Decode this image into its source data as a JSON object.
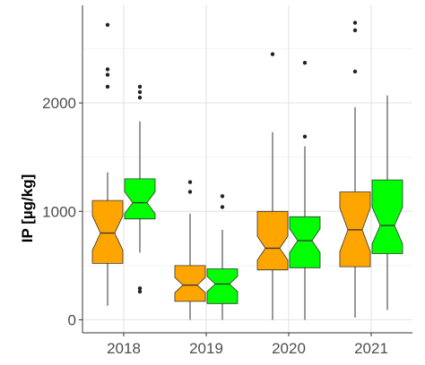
{
  "chart_data": {
    "type": "boxplot",
    "notched": true,
    "title": "",
    "xlabel": "",
    "ylabel": "IP [µg/kg]",
    "ylim": [
      -120,
      2900
    ],
    "grid": true,
    "legend": "none",
    "categories": [
      "2018",
      "2019",
      "2020",
      "2021"
    ],
    "y_ticks": [
      0,
      1000,
      2000
    ],
    "y_tick_labels": [
      "0",
      "1000",
      "2000"
    ],
    "series": [
      {
        "color": "#FFA500",
        "boxes": [
          {
            "q1": 520,
            "median": 800,
            "q3": 1100,
            "notch_low": 640,
            "notch_high": 960,
            "whisker_low": 130,
            "whisker_high": 1360,
            "outliers": [
              2150,
              2260,
              2310,
              2720
            ]
          },
          {
            "q1": 170,
            "median": 320,
            "q3": 500,
            "notch_low": 250,
            "notch_high": 390,
            "whisker_low": 0,
            "whisker_high": 980,
            "outliers": [
              1180,
              1270
            ]
          },
          {
            "q1": 460,
            "median": 660,
            "q3": 1000,
            "notch_low": 550,
            "notch_high": 770,
            "whisker_low": 0,
            "whisker_high": 1730,
            "outliers": [
              2450
            ]
          },
          {
            "q1": 490,
            "median": 830,
            "q3": 1180,
            "notch_low": 630,
            "notch_high": 1030,
            "whisker_low": 20,
            "whisker_high": 1960,
            "outliers": [
              2290,
              2670,
              2740
            ]
          }
        ]
      },
      {
        "color": "#00FF00",
        "boxes": [
          {
            "q1": 930,
            "median": 1080,
            "q3": 1300,
            "notch_low": 980,
            "notch_high": 1180,
            "whisker_low": 620,
            "whisker_high": 1830,
            "outliers": [
              260,
              290,
              2050,
              2100,
              2150
            ]
          },
          {
            "q1": 150,
            "median": 330,
            "q3": 470,
            "notch_low": 260,
            "notch_high": 400,
            "whisker_low": 0,
            "whisker_high": 830,
            "outliers": [
              1040,
              1140
            ]
          },
          {
            "q1": 480,
            "median": 730,
            "q3": 950,
            "notch_low": 620,
            "notch_high": 840,
            "whisker_low": 0,
            "whisker_high": 1600,
            "outliers": [
              1690,
              2370
            ]
          },
          {
            "q1": 610,
            "median": 870,
            "q3": 1290,
            "notch_low": 700,
            "notch_high": 1040,
            "whisker_low": 90,
            "whisker_high": 2070,
            "outliers": []
          }
        ]
      }
    ]
  }
}
